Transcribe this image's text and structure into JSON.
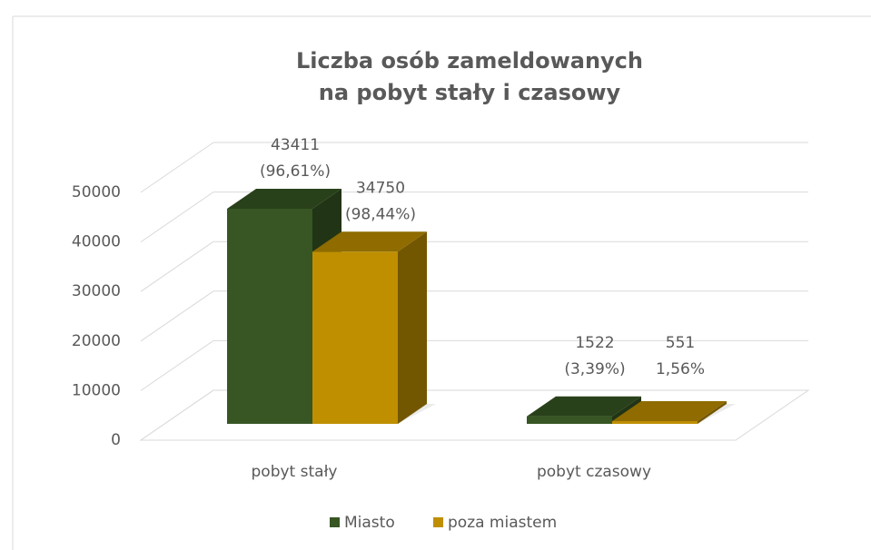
{
  "chart_data": {
    "type": "bar3d",
    "title": [
      "Liczba osób zameldowanych",
      "na pobyt stały  i czasowy"
    ],
    "categories": [
      "pobyt stały",
      "pobyt czasowy"
    ],
    "series": [
      {
        "name": "Miasto",
        "color": "#375623",
        "values": [
          43411,
          1522
        ],
        "value_labels": [
          [
            "43411",
            "(96,61%)"
          ],
          [
            "1522",
            "(3,39%)"
          ]
        ]
      },
      {
        "name": "poza miastem",
        "color": "#bf8f00",
        "values": [
          34750,
          551
        ],
        "value_labels": [
          [
            "34750",
            "(98,44%)"
          ],
          [
            "551",
            "1,56%"
          ]
        ]
      }
    ],
    "ylim": [
      0,
      50000
    ],
    "yticks": [
      0,
      10000,
      20000,
      30000,
      40000,
      50000
    ],
    "grid": true,
    "legend": "bottom"
  }
}
